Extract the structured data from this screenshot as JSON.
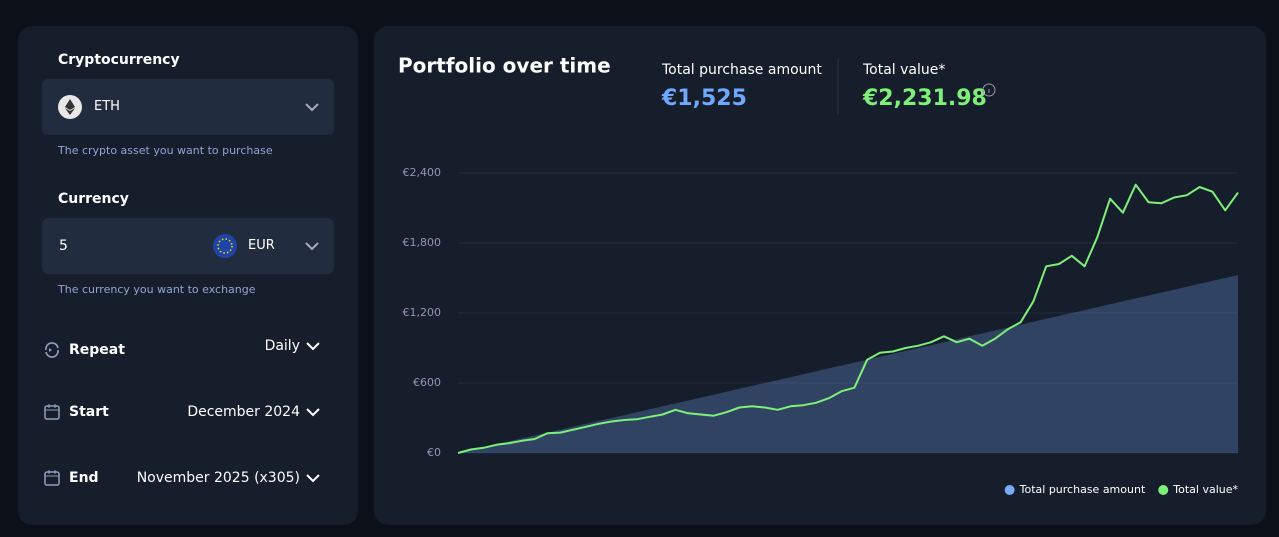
{
  "form": {
    "crypto_label": "Cryptocurrency",
    "crypto_value": "ETH",
    "crypto_help": "The crypto asset you want to purchase",
    "currency_label": "Currency",
    "amount": "5",
    "currency_value": "EUR",
    "currency_help": "The currency you want to exchange",
    "repeat_label": "Repeat",
    "repeat_value": "Daily",
    "start_label": "Start",
    "start_value": "December 2024",
    "end_label": "End",
    "end_value": "November 2025 (x305)"
  },
  "summary": {
    "purchase_label": "Total purchase amount",
    "purchase_value": "€1,525",
    "total_label": "Total value*",
    "total_value": "€2,231.98"
  },
  "chart_data": {
    "type": "area-line",
    "title": "Portfolio over time",
    "ylim": [
      0,
      2400
    ],
    "yticks": [
      {
        "value": 0,
        "label": "€0"
      },
      {
        "value": 600,
        "label": "€600"
      },
      {
        "value": 1200,
        "label": "€1,200"
      },
      {
        "value": 1800,
        "label": "€1,800"
      },
      {
        "value": 2400,
        "label": "€2,400"
      }
    ],
    "grid": true,
    "legend": "bottom-right",
    "series": [
      {
        "name": "Total purchase amount",
        "color": "#7aabf7",
        "kind": "area",
        "values": [
          0,
          25,
          50,
          75,
          100,
          125,
          150,
          175,
          200,
          225,
          250,
          275,
          300,
          325,
          350,
          375,
          400,
          425,
          450,
          475,
          500,
          525,
          550,
          575,
          600,
          625,
          650,
          675,
          700,
          725,
          750,
          775,
          800,
          825,
          850,
          875,
          900,
          925,
          950,
          975,
          1000,
          1025,
          1050,
          1075,
          1100,
          1125,
          1150,
          1175,
          1200,
          1225,
          1250,
          1275,
          1300,
          1325,
          1350,
          1375,
          1400,
          1425,
          1450,
          1475,
          1500,
          1525
        ]
      },
      {
        "name": "Total value*",
        "color": "#7ef07a",
        "kind": "line",
        "values": [
          0,
          30,
          45,
          70,
          85,
          105,
          120,
          170,
          175,
          200,
          225,
          250,
          270,
          283,
          290,
          310,
          330,
          370,
          340,
          330,
          320,
          350,
          390,
          400,
          390,
          370,
          400,
          410,
          430,
          470,
          530,
          560,
          800,
          860,
          870,
          900,
          920,
          950,
          1000,
          950,
          980,
          920,
          980,
          1060,
          1120,
          1300,
          1600,
          1620,
          1690,
          1600,
          1850,
          2180,
          2060,
          2300,
          2150,
          2140,
          2190,
          2210,
          2280,
          2240,
          2080,
          2232
        ]
      }
    ]
  }
}
